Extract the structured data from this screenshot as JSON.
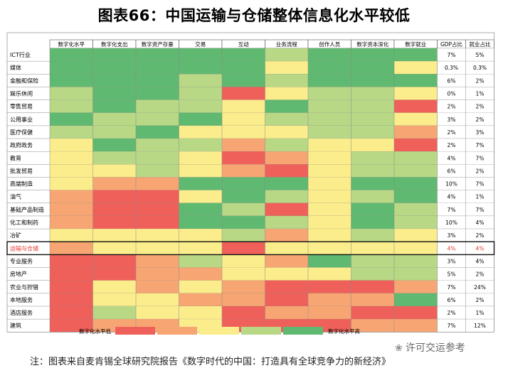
{
  "title": "图表66：中国运输与仓储整体信息化水平较低",
  "chart_data": {
    "type": "heatmap",
    "columns": [
      "数字化水平",
      "数字化支出",
      "数字资产存量",
      "交易",
      "互动",
      "业务流程",
      "创作人员",
      "数字资本深化",
      "数字就业"
    ],
    "extra_columns": [
      "GDP占比",
      "就业占比"
    ],
    "rows": [
      "ICT行业",
      "媒体",
      "金融和保险",
      "娱乐休闲",
      "零售贸易",
      "公用事业",
      "医疗保健",
      "政府政务",
      "教育",
      "批发贸易",
      "高端制造",
      "油气",
      "基础产品制造",
      "化工和制药",
      "冶矿",
      "运输与仓储",
      "专业服务",
      "房地产",
      "农业与狩猎",
      "本地服务",
      "酒店服务",
      "建筑"
    ],
    "levels": [
      [
        5,
        5,
        5,
        5,
        5,
        4,
        5,
        5,
        5
      ],
      [
        5,
        5,
        5,
        5,
        5,
        3,
        5,
        5,
        3
      ],
      [
        5,
        5,
        5,
        4,
        5,
        4,
        5,
        5,
        5
      ],
      [
        4,
        5,
        5,
        4,
        1,
        3,
        4,
        4,
        3
      ],
      [
        4,
        5,
        4,
        4,
        3,
        5,
        4,
        4,
        1
      ],
      [
        5,
        4,
        4,
        5,
        3,
        4,
        4,
        4,
        3
      ],
      [
        4,
        4,
        5,
        3,
        3,
        3,
        4,
        4,
        2
      ],
      [
        3,
        5,
        4,
        4,
        2,
        4,
        3,
        3,
        1
      ],
      [
        3,
        4,
        4,
        3,
        1,
        2,
        3,
        4,
        4
      ],
      [
        3,
        3,
        4,
        3,
        2,
        1,
        3,
        4,
        4
      ],
      [
        3,
        2,
        2,
        5,
        5,
        5,
        3,
        5,
        5
      ],
      [
        2,
        1,
        1,
        3,
        5,
        4,
        3,
        4,
        5
      ],
      [
        2,
        1,
        1,
        5,
        4,
        1,
        3,
        5,
        4
      ],
      [
        2,
        1,
        1,
        5,
        5,
        4,
        3,
        5,
        4
      ],
      [
        3,
        3,
        3,
        3,
        4,
        2,
        3,
        4,
        3
      ],
      [
        2,
        3,
        3,
        3,
        1,
        3,
        3,
        3,
        3
      ],
      [
        1,
        1,
        2,
        4,
        3,
        2,
        5,
        4,
        4
      ],
      [
        1,
        1,
        2,
        2,
        3,
        3,
        3,
        4,
        4
      ],
      [
        1,
        3,
        2,
        3,
        2,
        1,
        1,
        1,
        2
      ],
      [
        1,
        3,
        3,
        2,
        2,
        1,
        2,
        2,
        5
      ],
      [
        1,
        4,
        3,
        3,
        1,
        2,
        2,
        1,
        1
      ],
      [
        1,
        2,
        2,
        3,
        1,
        1,
        1,
        2,
        2
      ]
    ],
    "gdp_share": [
      "7%",
      "0.3%",
      "6%",
      "0%",
      "2%",
      "3%",
      "2%",
      "2%",
      "4%",
      "6%",
      "10%",
      "4%",
      "7%",
      "10%",
      "3%",
      "4%",
      "3%",
      "5%",
      "7%",
      "6%",
      "2%",
      "7%"
    ],
    "employment_share": [
      "5%",
      "0.3%",
      "2%",
      "1%",
      "2%",
      "2%",
      "3%",
      "7%",
      "7%",
      "2%",
      "7%",
      "1%",
      "7%",
      "4%",
      "2%",
      "4%",
      "4%",
      "2%",
      "24%",
      "2%",
      "1%",
      "12%"
    ],
    "highlight_row": "运输与仓储",
    "highlight_color": "#e8382f",
    "legend": {
      "low_label": "数字化水平低",
      "high_label": "数字化水平高",
      "colors": [
        "#f0605a",
        "#f7a673",
        "#fbed8b",
        "#b8d886",
        "#60b970"
      ]
    }
  },
  "note": "注：图表来自麦肯锡全球研究院报告《数字时代的中国：打造具有全球竞争力的新经济》",
  "watermark": "许可交运参考",
  "watermark_icon": "wechat-icon"
}
